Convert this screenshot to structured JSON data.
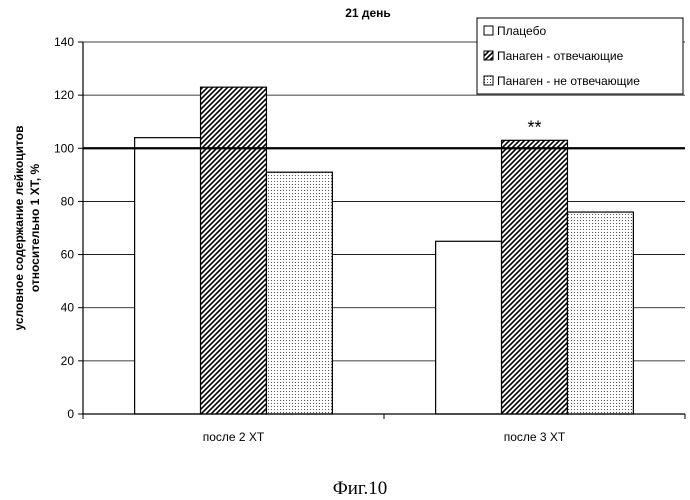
{
  "chart_data": {
    "type": "bar",
    "title": "21 день",
    "ylabel_line1": "условное содержание лейкоцитов",
    "ylabel_line2": "относительно 1 ХТ, %",
    "xlabel": "",
    "categories": [
      "после 2 ХТ",
      "после 3 ХТ"
    ],
    "series": [
      {
        "name": "Плацебо",
        "values": [
          104,
          65
        ],
        "pattern": "blank"
      },
      {
        "name": "Панаген - отвечающие",
        "values": [
          123,
          103
        ],
        "pattern": "hatch"
      },
      {
        "name": "Панаген - не отвечающие",
        "values": [
          91,
          76
        ],
        "pattern": "dots"
      }
    ],
    "ylim": [
      0,
      140
    ],
    "yticks": [
      0,
      20,
      40,
      60,
      80,
      100,
      120,
      140
    ],
    "reference_line": 100,
    "gridlines": true,
    "legend_position": "top-right",
    "annotation": {
      "text": "**",
      "category_index": 1,
      "series_index": 1
    }
  },
  "caption": "Фиг.10"
}
